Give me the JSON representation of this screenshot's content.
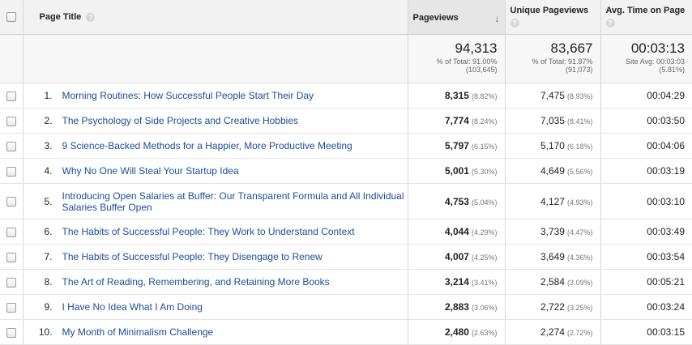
{
  "header": {
    "page_title": "Page Title",
    "pageviews": "Pageviews",
    "unique_pageviews": "Unique Pageviews",
    "avg_time": "Avg. Time on Page",
    "help_glyph": "?",
    "sort_glyph": "↓"
  },
  "totals": {
    "pageviews": "94,313",
    "pageviews_pct_line": "% of Total: 91.00%",
    "pageviews_total": "(103,645)",
    "unique": "83,667",
    "unique_pct_line": "% of Total: 91.87%",
    "unique_total": "(91,073)",
    "avg": "00:03:13",
    "avg_site_line": "Site Avg: 00:03:03",
    "avg_site_pct": "(5.81%)"
  },
  "rows": [
    {
      "idx": "1.",
      "title": "Morning Routines: How Successful People Start Their Day",
      "pv": "8,315",
      "pv_pct": "(8.82%)",
      "upv": "7,475",
      "upv_pct": "(8.93%)",
      "avg": "00:04:29"
    },
    {
      "idx": "2.",
      "title": "The Psychology of Side Projects and Creative Hobbies",
      "pv": "7,774",
      "pv_pct": "(8.24%)",
      "upv": "7,035",
      "upv_pct": "(8.41%)",
      "avg": "00:03:50"
    },
    {
      "idx": "3.",
      "title": "9 Science-Backed Methods for a Happier, More Productive Meeting",
      "pv": "5,797",
      "pv_pct": "(6.15%)",
      "upv": "5,170",
      "upv_pct": "(6.18%)",
      "avg": "00:04:06"
    },
    {
      "idx": "4.",
      "title": "Why No One Will Steal Your Startup Idea",
      "pv": "5,001",
      "pv_pct": "(5.30%)",
      "upv": "4,649",
      "upv_pct": "(5.56%)",
      "avg": "00:03:19"
    },
    {
      "idx": "5.",
      "title": "Introducing Open Salaries at Buffer: Our Transparent Formula and All Individual Salaries Buffer Open",
      "pv": "4,753",
      "pv_pct": "(5.04%)",
      "upv": "4,127",
      "upv_pct": "(4.93%)",
      "avg": "00:03:10"
    },
    {
      "idx": "6.",
      "title": "The Habits of Successful People: They Work to Understand Context",
      "pv": "4,044",
      "pv_pct": "(4.29%)",
      "upv": "3,739",
      "upv_pct": "(4.47%)",
      "avg": "00:03:49"
    },
    {
      "idx": "7.",
      "title": "The Habits of Successful People: They Disengage to Renew",
      "pv": "4,007",
      "pv_pct": "(4.25%)",
      "upv": "3,649",
      "upv_pct": "(4.36%)",
      "avg": "00:03:54"
    },
    {
      "idx": "8.",
      "title": "The Art of Reading, Remembering, and Retaining More Books",
      "pv": "3,214",
      "pv_pct": "(3.41%)",
      "upv": "2,584",
      "upv_pct": "(3.09%)",
      "avg": "00:05:21"
    },
    {
      "idx": "9.",
      "title": "I Have No Idea What I Am Doing",
      "pv": "2,883",
      "pv_pct": "(3.06%)",
      "upv": "2,722",
      "upv_pct": "(3.25%)",
      "avg": "00:03:24"
    },
    {
      "idx": "10.",
      "title": "My Month of Minimalism Challenge",
      "pv": "2,480",
      "pv_pct": "(2.63%)",
      "upv": "2,274",
      "upv_pct": "(2.72%)",
      "avg": "00:03:15"
    }
  ],
  "colors": {
    "link": "#1c4c99",
    "header_bg": "#f2f2f2",
    "totals_bg": "#f7f7f7"
  }
}
